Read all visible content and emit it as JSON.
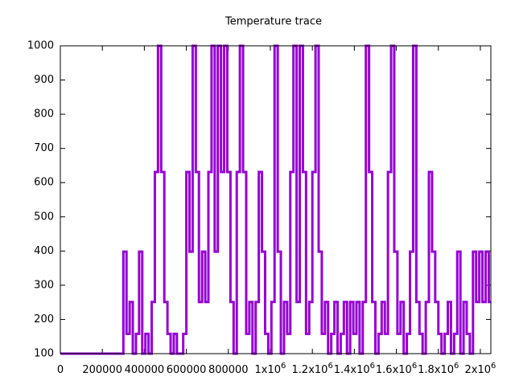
{
  "chart_data": {
    "type": "step",
    "title": "Temperature trace",
    "x": [
      0,
      300000,
      315000,
      330000,
      345000,
      360000,
      375000,
      390000,
      405000,
      420000,
      435000,
      450000,
      465000,
      480000,
      495000,
      510000,
      525000,
      540000,
      555000,
      570000,
      585000,
      600000,
      615000,
      630000,
      645000,
      660000,
      675000,
      690000,
      705000,
      720000,
      735000,
      750000,
      765000,
      780000,
      795000,
      810000,
      825000,
      840000,
      855000,
      870000,
      885000,
      900000,
      915000,
      930000,
      945000,
      960000,
      975000,
      990000,
      1005000,
      1020000,
      1035000,
      1050000,
      1065000,
      1080000,
      1095000,
      1110000,
      1125000,
      1140000,
      1155000,
      1170000,
      1185000,
      1200000,
      1215000,
      1230000,
      1245000,
      1260000,
      1275000,
      1290000,
      1305000,
      1320000,
      1335000,
      1350000,
      1365000,
      1380000,
      1395000,
      1410000,
      1425000,
      1440000,
      1455000,
      1470000,
      1485000,
      1500000,
      1515000,
      1530000,
      1545000,
      1560000,
      1575000,
      1590000,
      1605000,
      1620000,
      1635000,
      1650000,
      1665000,
      1680000,
      1695000,
      1710000,
      1725000,
      1740000,
      1755000,
      1770000,
      1785000,
      1800000,
      1815000,
      1830000,
      1845000,
      1860000,
      1875000,
      1890000,
      1905000,
      1920000,
      1935000,
      1950000,
      1965000,
      1980000,
      1995000,
      2010000,
      2025000,
      2040000
    ],
    "series": [
      {
        "color": "#9400d3",
        "values": [
          100,
          398,
          158,
          251,
          100,
          158,
          398,
          100,
          158,
          100,
          251,
          631,
          1000,
          631,
          251,
          158,
          100,
          158,
          100,
          100,
          158,
          631,
          398,
          1000,
          631,
          251,
          398,
          251,
          631,
          1000,
          398,
          1000,
          631,
          1000,
          631,
          251,
          100,
          631,
          1000,
          631,
          158,
          251,
          100,
          251,
          631,
          398,
          158,
          100,
          251,
          1000,
          398,
          100,
          251,
          158,
          631,
          1000,
          251,
          1000,
          631,
          158,
          251,
          631,
          1000,
          398,
          158,
          251,
          100,
          158,
          251,
          100,
          158,
          251,
          100,
          251,
          158,
          251,
          100,
          251,
          1000,
          631,
          251,
          100,
          158,
          251,
          158,
          631,
          1000,
          398,
          158,
          251,
          100,
          158,
          398,
          1000,
          251,
          158,
          100,
          251,
          631,
          398,
          251,
          158,
          100,
          158,
          251,
          100,
          158,
          398,
          100,
          251,
          158,
          100,
          398,
          251,
          398,
          251,
          398,
          251
        ]
      }
    ],
    "xlim": [
      0,
      2050000
    ],
    "xticks": [
      0,
      200000,
      400000,
      600000,
      800000,
      {
        "value": 1000000,
        "label": "1x10",
        "exponent": "6"
      },
      {
        "value": 1200000,
        "label": "1.2x10",
        "exponent": "6"
      },
      {
        "value": 1400000,
        "label": "1.4x10",
        "exponent": "6"
      },
      {
        "value": 1600000,
        "label": "1.6x10",
        "exponent": "6"
      },
      {
        "value": 1800000,
        "label": "1.8x10",
        "exponent": "6"
      },
      {
        "value": 2000000,
        "label": "2x10",
        "exponent": "6"
      }
    ],
    "ylim": [
      100,
      1000
    ],
    "yticks": [
      100,
      200,
      300,
      400,
      500,
      600,
      700,
      800,
      900,
      1000
    ]
  }
}
